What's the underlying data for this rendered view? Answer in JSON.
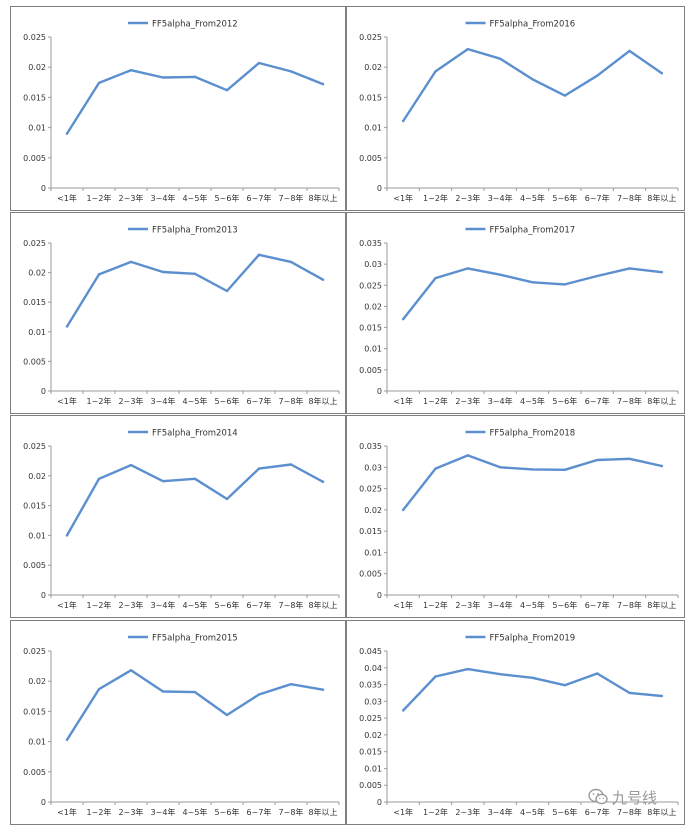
{
  "style": {
    "line_color": "#5b8fcf",
    "axis_color": "#9a9a9a",
    "text_color": "#333333",
    "frame_color": "#7f7f7f"
  },
  "categories": [
    "<1年",
    "1~2年",
    "2~3年",
    "3~4年",
    "4~5年",
    "5~6年",
    "6~7年",
    "7~8年",
    "8年以上"
  ],
  "chart_data": [
    {
      "type": "line",
      "categories": [
        "<1年",
        "1~2年",
        "2~3年",
        "3~4年",
        "4~5年",
        "5~6年",
        "6~7年",
        "7~8年",
        "8年以上"
      ],
      "series": [
        {
          "name": "FF5alpha_From2012",
          "values": [
            0.009,
            0.0174,
            0.0195,
            0.0183,
            0.0184,
            0.0162,
            0.0207,
            0.0193,
            0.0172
          ]
        }
      ],
      "ylim": [
        0,
        0.025
      ],
      "yticks": [
        "0.025",
        "0.02",
        "0.015",
        "0.01",
        "0.005",
        "0"
      ],
      "legend": "top"
    },
    {
      "type": "line",
      "categories": [
        "<1年",
        "1~2年",
        "2~3年",
        "3~4年",
        "4~5年",
        "5~6年",
        "6~7年",
        "7~8年",
        "8年以上"
      ],
      "series": [
        {
          "name": "FF5alpha_From2016",
          "values": [
            0.0111,
            0.0193,
            0.023,
            0.0214,
            0.018,
            0.0153,
            0.0186,
            0.0227,
            0.019
          ]
        }
      ],
      "ylim": [
        0,
        0.025
      ],
      "yticks": [
        "0.025",
        "0.02",
        "0.015",
        "0.01",
        "0.005",
        "0"
      ],
      "legend": "top"
    },
    {
      "type": "line",
      "categories": [
        "<1年",
        "1~2年",
        "2~3年",
        "3~4年",
        "4~5年",
        "5~6年",
        "6~7年",
        "7~8年",
        "8年以上"
      ],
      "series": [
        {
          "name": "FF5alpha_From2013",
          "values": [
            0.0109,
            0.0197,
            0.0218,
            0.0201,
            0.0198,
            0.0169,
            0.023,
            0.0218,
            0.0188
          ]
        }
      ],
      "ylim": [
        0,
        0.025
      ],
      "yticks": [
        "0.025",
        "0.02",
        "0.015",
        "0.01",
        "0.005",
        "0"
      ],
      "legend": "top"
    },
    {
      "type": "line",
      "categories": [
        "<1年",
        "1~2年",
        "2~3年",
        "3~4年",
        "4~5年",
        "5~6年",
        "6~7年",
        "7~8年",
        "8年以上"
      ],
      "series": [
        {
          "name": "FF5alpha_From2017",
          "values": [
            0.017,
            0.0267,
            0.029,
            0.0275,
            0.0257,
            0.0252,
            0.0272,
            0.029,
            0.0281
          ]
        }
      ],
      "ylim": [
        0,
        0.035
      ],
      "yticks": [
        "0.035",
        "0.03",
        "0.025",
        "0.02",
        "0.015",
        "0.01",
        "0.005",
        "0"
      ],
      "legend": "top"
    },
    {
      "type": "line",
      "categories": [
        "<1年",
        "1~2年",
        "2~3年",
        "3~4年",
        "4~5年",
        "5~6年",
        "6~7年",
        "7~8年",
        "8年以上"
      ],
      "series": [
        {
          "name": "FF5alpha_From2014",
          "values": [
            0.01,
            0.0195,
            0.0218,
            0.0191,
            0.0195,
            0.0161,
            0.0212,
            0.0219,
            0.019
          ]
        }
      ],
      "ylim": [
        0,
        0.025
      ],
      "yticks": [
        "0.025",
        "0.02",
        "0.015",
        "0.01",
        "0.005",
        "0"
      ],
      "legend": "top"
    },
    {
      "type": "line",
      "categories": [
        "<1年",
        "1~2年",
        "2~3年",
        "3~4年",
        "4~5年",
        "5~6年",
        "6~7年",
        "7~8年",
        "8年以上"
      ],
      "series": [
        {
          "name": "FF5alpha_From2018",
          "values": [
            0.02,
            0.0297,
            0.0328,
            0.03,
            0.0295,
            0.0294,
            0.0317,
            0.032,
            0.0303
          ]
        }
      ],
      "ylim": [
        0,
        0.035
      ],
      "yticks": [
        "0.035",
        "0.03",
        "0.025",
        "0.02",
        "0.015",
        "0.01",
        "0.005",
        "0"
      ],
      "legend": "top"
    },
    {
      "type": "line",
      "categories": [
        "<1年",
        "1~2年",
        "2~3年",
        "3~4年",
        "4~5年",
        "5~6年",
        "6~7年",
        "7~8年",
        "8年以上"
      ],
      "series": [
        {
          "name": "FF5alpha_From2015",
          "values": [
            0.0103,
            0.0187,
            0.0218,
            0.0183,
            0.0182,
            0.0144,
            0.0178,
            0.0195,
            0.0186
          ]
        }
      ],
      "ylim": [
        0,
        0.025
      ],
      "yticks": [
        "0.025",
        "0.02",
        "0.015",
        "0.01",
        "0.005",
        "0"
      ],
      "legend": "top"
    },
    {
      "type": "line",
      "categories": [
        "<1年",
        "1~2年",
        "2~3年",
        "3~4年",
        "4~5年",
        "5~6年",
        "6~7年",
        "7~8年",
        "8年以上"
      ],
      "series": [
        {
          "name": "FF5alpha_From2019",
          "values": [
            0.0273,
            0.0374,
            0.0396,
            0.0381,
            0.037,
            0.0348,
            0.0383,
            0.0325,
            0.0316
          ]
        }
      ],
      "ylim": [
        0,
        0.045
      ],
      "yticks": [
        "0.045",
        "0.04",
        "0.035",
        "0.03",
        "0.025",
        "0.02",
        "0.015",
        "0.01",
        "0.005",
        "0"
      ],
      "legend": "top"
    }
  ],
  "watermark": {
    "text": "九号线",
    "icon": "wechat-icon"
  }
}
